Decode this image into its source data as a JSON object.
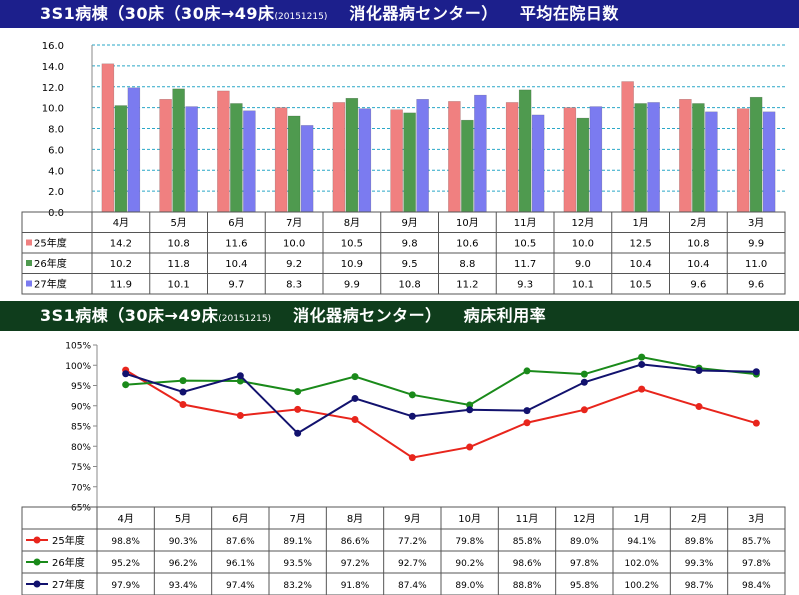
{
  "header1": {
    "main": "3S1病棟（30床（30床→49床",
    "date": "(20151215)",
    "center": "消化器病センター）",
    "metric": "平均在院日数"
  },
  "header2": {
    "main": "3S1病棟（30床→49床",
    "date": "(20151215)",
    "center": "消化器病センター）",
    "metric": "病床利用率"
  },
  "colors": {
    "banner1": "#1c1f8c",
    "banner2": "#0f3d1c",
    "bar_red": "#f08080",
    "bar_green": "#4f9a4f",
    "bar_blue": "#7b7bf0",
    "line_red": "#e8251c",
    "line_green": "#1a8a1a",
    "line_blue": "#12126e",
    "grid": "#2aa7c7"
  },
  "chart_data": [
    {
      "type": "bar",
      "categories": [
        "4月",
        "5月",
        "6月",
        "7月",
        "8月",
        "9月",
        "10月",
        "11月",
        "12月",
        "1月",
        "2月",
        "3月"
      ],
      "series": [
        {
          "name": "25年度",
          "values": [
            14.2,
            10.8,
            11.6,
            10.0,
            10.5,
            9.8,
            10.6,
            10.5,
            10.0,
            12.5,
            10.8,
            9.9
          ],
          "labels": [
            "14.2",
            "10.8",
            "11.6",
            "10.0",
            "10.5",
            "9.8",
            "10.6",
            "10.5",
            "10.0",
            "12.5",
            "10.8",
            "9.9"
          ]
        },
        {
          "name": "26年度",
          "values": [
            10.2,
            11.8,
            10.4,
            9.2,
            10.9,
            9.5,
            8.8,
            11.7,
            9.0,
            10.4,
            10.4,
            11.0
          ],
          "labels": [
            "10.2",
            "11.8",
            "10.4",
            "9.2",
            "10.9",
            "9.5",
            "8.8",
            "11.7",
            "9.0",
            "10.4",
            "10.4",
            "11.0"
          ]
        },
        {
          "name": "27年度",
          "values": [
            11.9,
            10.1,
            9.7,
            8.3,
            9.9,
            10.8,
            11.2,
            9.3,
            10.1,
            10.5,
            9.6,
            9.6
          ],
          "labels": [
            "11.9",
            "10.1",
            "9.7",
            "8.3",
            "9.9",
            "10.8",
            "11.2",
            "9.3",
            "10.1",
            "10.5",
            "9.6",
            "9.6"
          ]
        }
      ],
      "ylim": [
        0,
        16
      ],
      "yticks": [
        "0.0",
        "2.0",
        "4.0",
        "6.0",
        "8.0",
        "10.0",
        "12.0",
        "14.0",
        "16.0"
      ],
      "grid": true,
      "legend": "data-table"
    },
    {
      "type": "line",
      "categories": [
        "4月",
        "5月",
        "6月",
        "7月",
        "8月",
        "9月",
        "10月",
        "11月",
        "12月",
        "1月",
        "2月",
        "3月"
      ],
      "series": [
        {
          "name": "25年度",
          "values": [
            98.8,
            90.3,
            87.6,
            89.1,
            86.6,
            77.2,
            79.8,
            85.8,
            89.0,
            94.1,
            89.8,
            85.7
          ],
          "labels": [
            "98.8%",
            "90.3%",
            "87.6%",
            "89.1%",
            "86.6%",
            "77.2%",
            "79.8%",
            "85.8%",
            "89.0%",
            "94.1%",
            "89.8%",
            "85.7%"
          ]
        },
        {
          "name": "26年度",
          "values": [
            95.2,
            96.2,
            96.1,
            93.5,
            97.2,
            92.7,
            90.2,
            98.6,
            97.8,
            102.0,
            99.3,
            97.8
          ],
          "labels": [
            "95.2%",
            "96.2%",
            "96.1%",
            "93.5%",
            "97.2%",
            "92.7%",
            "90.2%",
            "98.6%",
            "97.8%",
            "102.0%",
            "99.3%",
            "97.8%"
          ]
        },
        {
          "name": "27年度",
          "values": [
            97.9,
            93.4,
            97.4,
            83.2,
            91.8,
            87.4,
            89.0,
            88.8,
            95.8,
            100.2,
            98.7,
            98.4
          ],
          "labels": [
            "97.9%",
            "93.4%",
            "97.4%",
            "83.2%",
            "91.8%",
            "87.4%",
            "89.0%",
            "88.8%",
            "95.8%",
            "100.2%",
            "98.7%",
            "98.4%"
          ]
        }
      ],
      "ylim": [
        65,
        105
      ],
      "yticks": [
        "65%",
        "70%",
        "75%",
        "80%",
        "85%",
        "90%",
        "95%",
        "100%",
        "105%"
      ],
      "grid": false,
      "legend": "data-table"
    }
  ]
}
